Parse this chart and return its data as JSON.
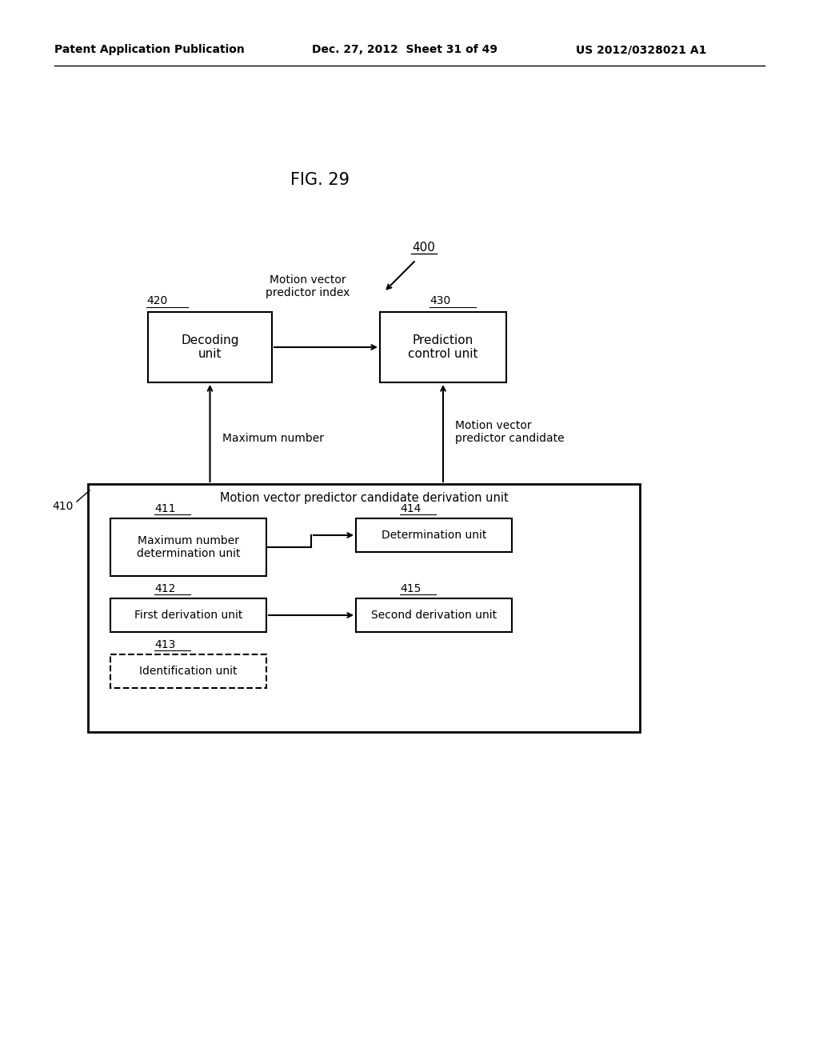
{
  "header_left": "Patent Application Publication",
  "header_mid": "Dec. 27, 2012  Sheet 31 of 49",
  "header_right": "US 2012/0328021 A1",
  "fig_label": "FIG. 29",
  "bg_color": "#ffffff",
  "label_400": "400",
  "label_410": "410",
  "label_420": "420",
  "label_430": "430",
  "label_411": "411",
  "label_412": "412",
  "label_413": "413",
  "label_414": "414",
  "label_415": "415",
  "box_420_text": "Decoding\nunit",
  "box_430_text": "Prediction\ncontrol unit",
  "box_410_title": "Motion vector predictor candidate derivation unit",
  "box_411_text": "Maximum number\ndetermination unit",
  "box_412_text": "First derivation unit",
  "box_413_text": "Identification unit",
  "box_414_text": "Determination unit",
  "box_415_text": "Second derivation unit",
  "arrow_420_430_label": "Motion vector\npredictor index",
  "arrow_411_420_label": "Maximum number",
  "arrow_415_430_label": "Motion vector\npredictor candidate"
}
